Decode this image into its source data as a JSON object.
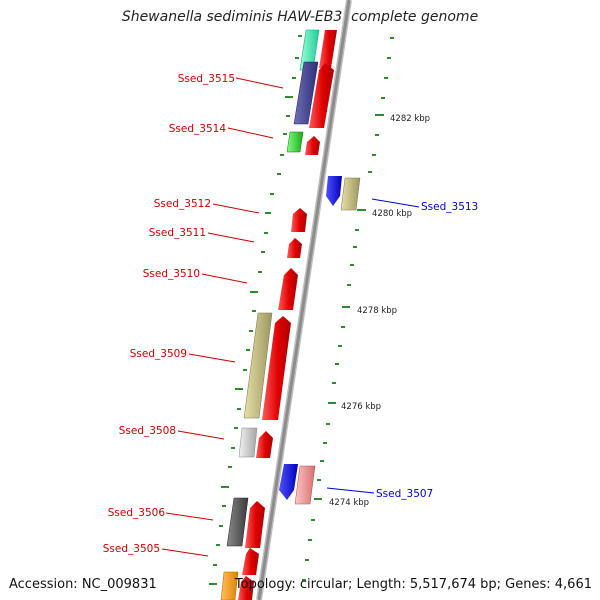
{
  "title": "Shewanella sediminis HAW-EB3, complete genome",
  "footer": {
    "accession": "Accession: NC_009831",
    "topology": "Topology: circular; Length: 5,517,674 bp; Genes: 4,661"
  },
  "colors": {
    "backbone": "#8c8c8c",
    "tick": "#2e8b2e",
    "reverse_label": "#cc0000",
    "forward_label": "#0000cc",
    "kbp_label": "#222222"
  },
  "kbp_labels": [
    "4282 kbp",
    "4280 kbp",
    "4278 kbp",
    "4276 kbp",
    "4274 kbp"
  ],
  "gene_labels": {
    "reverse": [
      "Ssed_3515",
      "Ssed_3514",
      "Ssed_3512",
      "Ssed_3511",
      "Ssed_3510",
      "Ssed_3509",
      "Ssed_3508",
      "Ssed_3506",
      "Ssed_3505"
    ],
    "forward": [
      "Ssed_3513",
      "Ssed_3507"
    ]
  }
}
